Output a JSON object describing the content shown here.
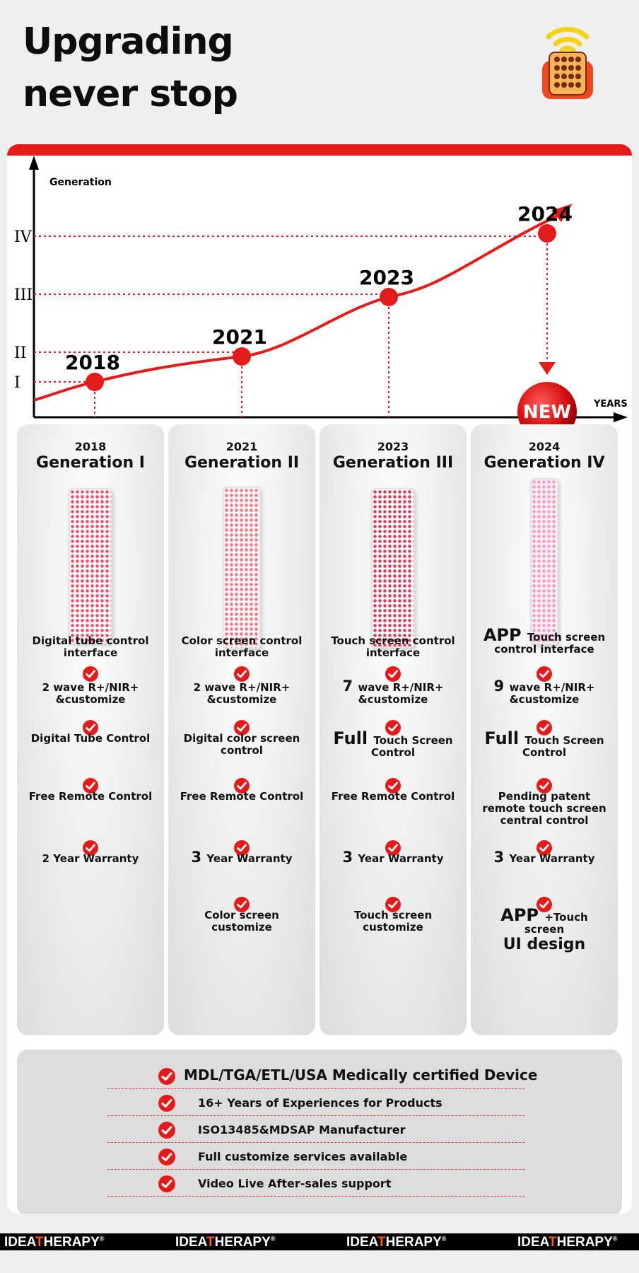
{
  "headline": {
    "line1": "Upgrading",
    "line2": "never stop"
  },
  "chart": {
    "y_axis_title": "Generation",
    "x_axis_title": "YEARS",
    "y_ticks": [
      "I",
      "II",
      "III",
      "IV"
    ],
    "points": [
      {
        "year": "2018",
        "generation": 1
      },
      {
        "year": "2021",
        "generation": 2
      },
      {
        "year": "2023",
        "generation": 3
      },
      {
        "year": "2024",
        "generation": 4
      }
    ],
    "new_badge": "NEW",
    "accent_color": "#e31b1b"
  },
  "generations": [
    {
      "year": "2018",
      "title": "Generation I",
      "features": [
        {
          "lead": "",
          "text": "Digital tube control interface"
        },
        {
          "lead": "",
          "text": "2 wave R+/NIR+ &customize"
        },
        {
          "lead": "",
          "text": "Digital Tube Control"
        },
        {
          "lead": "",
          "text": "Free Remote Control"
        },
        {
          "lead": "",
          "text": "2 Year Warranty"
        }
      ]
    },
    {
      "year": "2021",
      "title": "Generation II",
      "features": [
        {
          "lead": "",
          "text": "Color screen control interface"
        },
        {
          "lead": "",
          "text": "2 wave R+/NIR+ &customize"
        },
        {
          "lead": "",
          "text": "Digital color screen control"
        },
        {
          "lead": "",
          "text": "Free Remote Control"
        },
        {
          "lead": "3",
          "text": "Year Warranty"
        },
        {
          "lead": "",
          "text": "Color screen customize"
        }
      ]
    },
    {
      "year": "2023",
      "title": "Generation III",
      "features": [
        {
          "lead": "",
          "text": "Touch screen control interface"
        },
        {
          "lead": "7",
          "text": "wave R+/NIR+ &customize"
        },
        {
          "lead": "Full",
          "text": "Touch Screen Control"
        },
        {
          "lead": "",
          "text": "Free Remote Control"
        },
        {
          "lead": "3",
          "text": "Year Warranty"
        },
        {
          "lead": "",
          "text": "Touch screen customize"
        }
      ]
    },
    {
      "year": "2024",
      "title": "Generation IV",
      "features": [
        {
          "lead": "APP",
          "text": "Touch screen control interface"
        },
        {
          "lead": "9",
          "text": "wave R+/NIR+ &customize"
        },
        {
          "lead": "Full",
          "text": "Touch Screen Control"
        },
        {
          "lead": "",
          "text": "Pending patent remote touch screen central control"
        },
        {
          "lead": "3",
          "text": "Year Warranty"
        },
        {
          "lead": "APP",
          "text": "+Touch screen",
          "tail": "UI design"
        }
      ]
    }
  ],
  "certifications": [
    "MDL/TGA/ETL/USA Medically certified Device",
    "16+ Years of Experiences for Products",
    "ISO13485&MDSAP Manufacturer",
    "Full customize services available",
    "Video Live After-sales support"
  ],
  "brand": {
    "part1": "IDEA",
    "part2": "T",
    "part3": "HERAPY",
    "mark": "®"
  }
}
